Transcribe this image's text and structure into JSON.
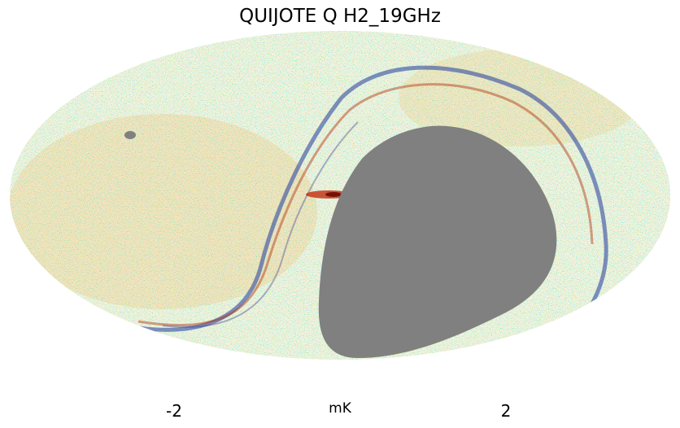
{
  "title": "QUIJOTE Q H2_19GHz",
  "projection": "mollweide",
  "map": {
    "masked_region_color": "#808080",
    "background": "#ffffff"
  },
  "colorbar": {
    "min_label": "-2",
    "max_label": "2",
    "unit": "mK",
    "range": [
      -2,
      2
    ],
    "colors": [
      "#0000ff",
      "#0080ff",
      "#00e5ff",
      "#fff5dc",
      "#ffb000",
      "#ff4000",
      "#8b0000",
      "#400000"
    ]
  }
}
